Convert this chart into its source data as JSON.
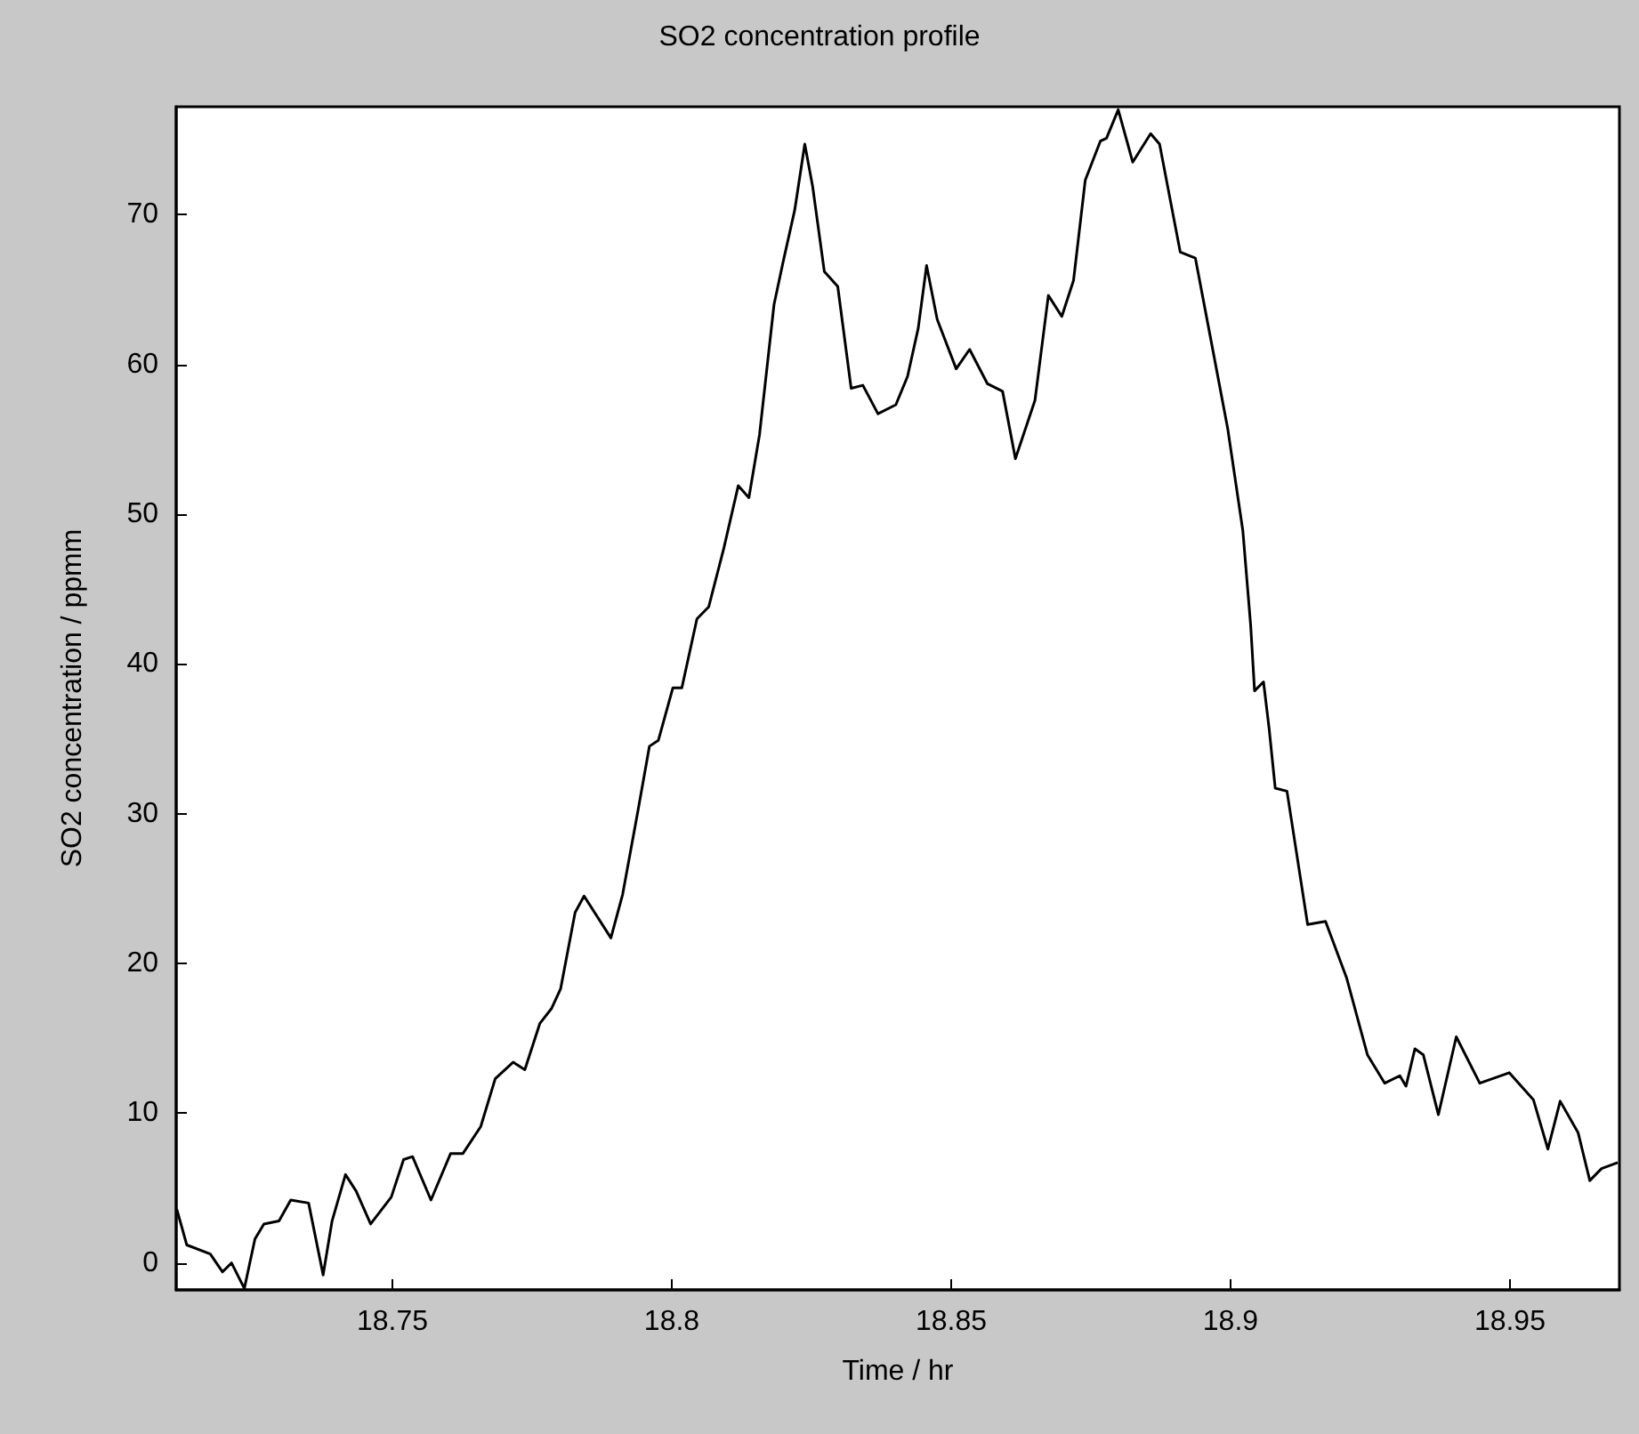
{
  "chart_data": {
    "type": "line",
    "title": "SO2 concentration profile",
    "xlabel": "Time / hr",
    "ylabel": "SO2 concentration / ppmm",
    "x": [
      18.7114,
      18.7132,
      18.7174,
      18.7196,
      18.7212,
      18.7235,
      18.7254,
      18.727,
      18.7297,
      18.7318,
      18.735,
      18.7376,
      18.7392,
      18.7416,
      18.7435,
      18.7461,
      18.7498,
      18.752,
      18.7536,
      18.7569,
      18.7604,
      18.7626,
      18.7658,
      18.7684,
      18.7716,
      18.7737,
      18.7764,
      18.7785,
      18.7801,
      18.7827,
      18.7843,
      18.7891,
      18.7912,
      18.7939,
      18.796,
      18.7976,
      18.8002,
      18.8018,
      18.8045,
      18.8066,
      18.8093,
      18.8119,
      18.8138,
      18.8157,
      18.8183,
      18.8199,
      18.822,
      18.8238,
      18.8252,
      18.8273,
      18.8297,
      18.8321,
      18.8342,
      18.8369,
      18.8401,
      18.8422,
      18.8441,
      18.8456,
      18.8475,
      18.8509,
      18.8533,
      18.8565,
      18.8592,
      18.8615,
      18.865,
      18.8674,
      18.8698,
      18.8719,
      18.874,
      18.8767,
      18.8778,
      18.8799,
      18.8825,
      18.8857,
      18.8873,
      18.891,
      18.8937,
      18.8963,
      18.8995,
      18.9022,
      18.9036,
      18.9043,
      18.9059,
      18.9069,
      18.908,
      18.9101,
      18.9138,
      18.917,
      18.9208,
      18.9245,
      18.9276,
      18.9303,
      18.9314,
      18.933,
      18.9345,
      18.9372,
      18.9404,
      18.9446,
      18.9499,
      18.9542,
      18.9568,
      18.959,
      18.9622,
      18.9643,
      18.9664,
      18.9693
    ],
    "series": [
      {
        "color": "#000000",
        "values": [
          3.6,
          1.2,
          0.6,
          -0.6,
          0,
          -1.7,
          1.6,
          2.6,
          2.8,
          4.2,
          4.0,
          -0.8,
          2.8,
          5.9,
          4.8,
          2.6,
          4.4,
          6.9,
          7.1,
          4.2,
          7.3,
          7.3,
          9.1,
          12.3,
          13.4,
          12.9,
          16.0,
          17.0,
          18.3,
          23.4,
          24.5,
          21.7,
          24.6,
          30.1,
          34.5,
          34.9,
          38.4,
          38.4,
          43.0,
          43.8,
          47.7,
          51.9,
          51.1,
          55.3,
          64.0,
          66.8,
          70.3,
          74.7,
          71.9,
          66.2,
          65.2,
          58.4,
          58.6,
          56.7,
          57.3,
          59.2,
          62.4,
          66.6,
          63.0,
          59.7,
          61.0,
          58.7,
          58.2,
          53.7,
          57.6,
          64.6,
          63.2,
          65.6,
          72.3,
          74.9,
          75.1,
          77.0,
          73.5,
          75.4,
          74.7,
          67.5,
          67.1,
          62.0,
          55.7,
          48.9,
          42.6,
          38.2,
          38.8,
          35.7,
          31.7,
          31.5,
          22.6,
          22.8,
          19.0,
          13.9,
          12.0,
          12.5,
          11.8,
          14.3,
          13.9,
          9.9,
          15.1,
          12.0,
          12.7,
          10.9,
          7.6,
          10.8,
          8.7,
          5.5,
          6.3,
          6.7
        ]
      }
    ],
    "xlim": [
      18.7113,
      18.9696
    ],
    "xticks": [
      18.75,
      18.8,
      18.85,
      18.9,
      18.95
    ],
    "ylim": [
      -1.8,
      77.2
    ],
    "yticks": [
      0,
      10,
      20,
      30,
      40,
      50,
      60,
      70
    ],
    "grid": false,
    "marker": "none",
    "line_style": "solid"
  }
}
